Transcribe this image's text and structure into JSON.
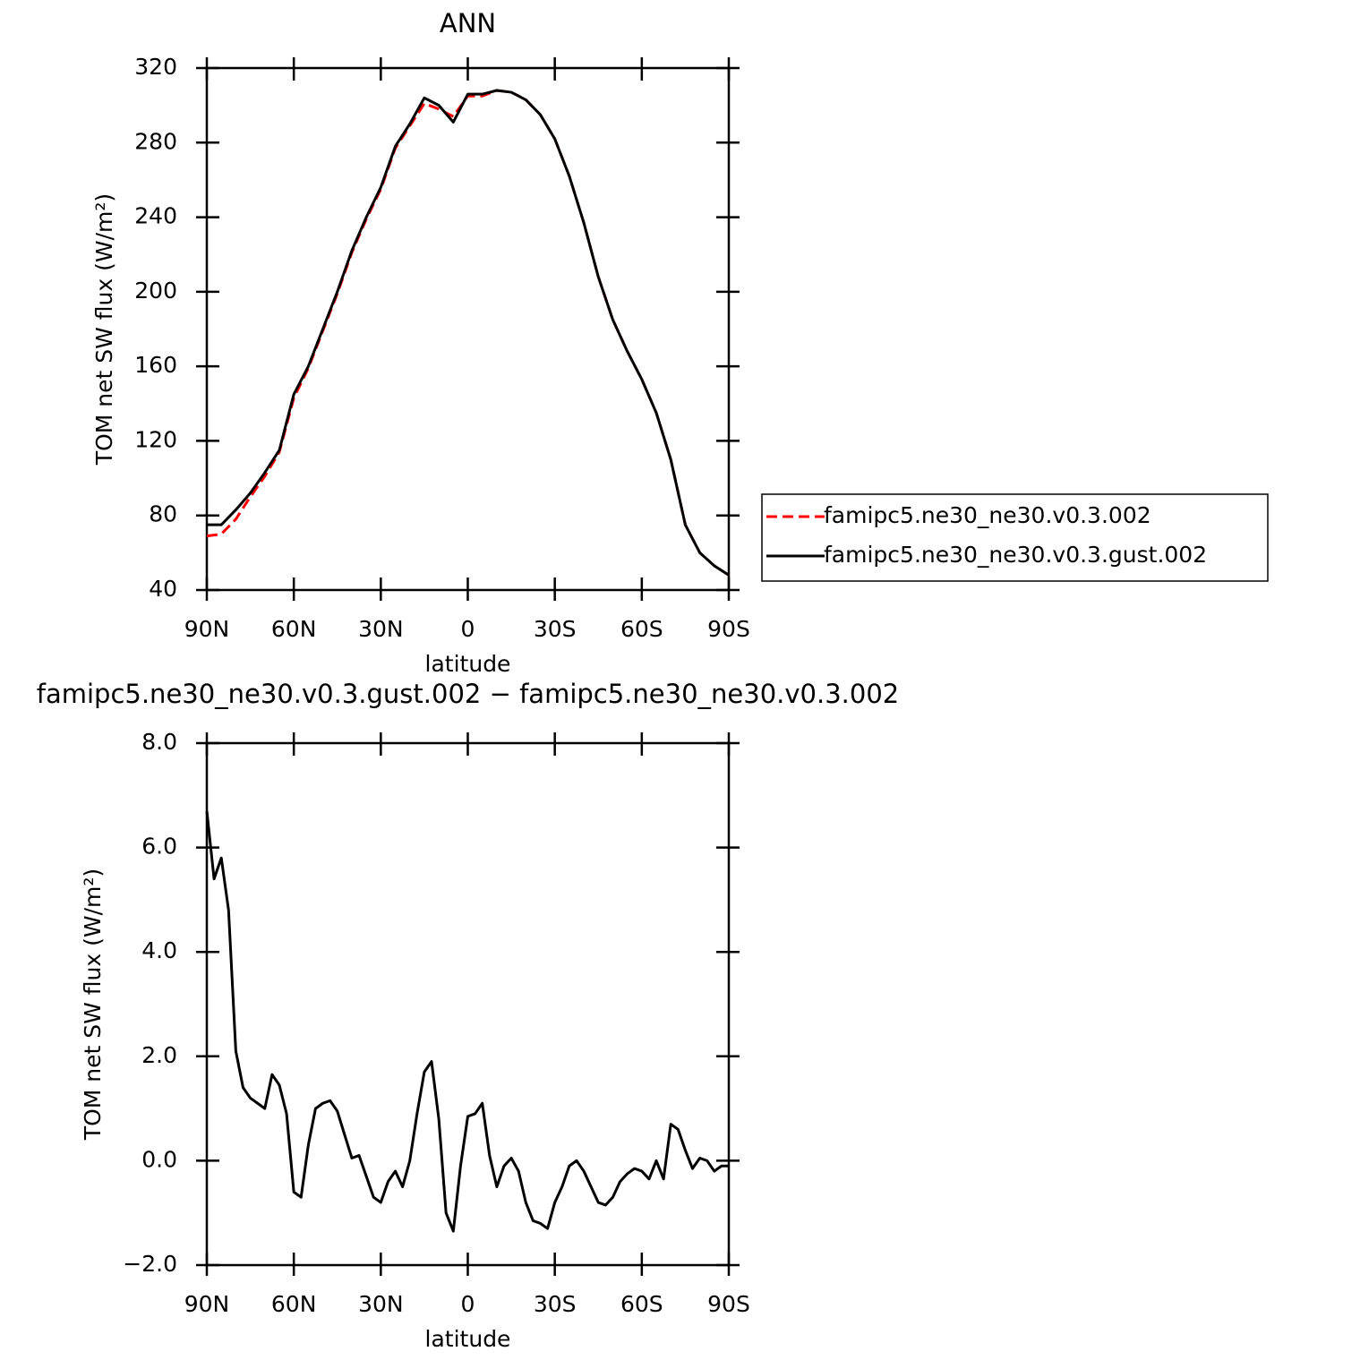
{
  "chart_data": [
    {
      "type": "line",
      "title": "ANN",
      "ylabel": "TOM net SW flux (W/m²)",
      "xlabel": "latitude",
      "x": [
        90,
        85,
        80,
        75,
        70,
        65,
        60,
        55,
        50,
        45,
        40,
        35,
        30,
        25,
        20,
        15,
        10,
        5,
        0,
        -5,
        -10,
        -15,
        -20,
        -25,
        -30,
        -35,
        -40,
        -45,
        -50,
        -55,
        -60,
        -65,
        -70,
        -75,
        -80,
        -85,
        -90
      ],
      "series": [
        {
          "name": "famipc5.ne30_ne30.v0.3.002",
          "color": "#ff0000",
          "linestyle": "dashed",
          "values": [
            69,
            70,
            78,
            90,
            101,
            114,
            143,
            159,
            179,
            199,
            221,
            239,
            255,
            277,
            289,
            301,
            298,
            294,
            305,
            305,
            308,
            307,
            303,
            295,
            282,
            262,
            237,
            208,
            185,
            168,
            153,
            135,
            110,
            75,
            60,
            53,
            48
          ]
        },
        {
          "name": "famipc5.ne30_ne30.v0.3.gust.002",
          "color": "#000000",
          "linestyle": "solid",
          "values": [
            75,
            75,
            83,
            92,
            103,
            115,
            145,
            160,
            180,
            200,
            222,
            240,
            256,
            278,
            290,
            304,
            300,
            291,
            306,
            306,
            308,
            307,
            303,
            295,
            282,
            262,
            237,
            208,
            185,
            168,
            153,
            135,
            110,
            75,
            60,
            53,
            48
          ]
        }
      ],
      "xlim": [
        90,
        -90
      ],
      "xticks": [
        {
          "value": 90,
          "label": "90N"
        },
        {
          "value": 60,
          "label": "60N"
        },
        {
          "value": 30,
          "label": "30N"
        },
        0,
        {
          "value": -30,
          "label": "30S"
        },
        {
          "value": -60,
          "label": "60S"
        },
        {
          "value": -90,
          "label": "90S"
        }
      ],
      "ylim": [
        40,
        320
      ],
      "yticks": [
        40,
        80,
        120,
        160,
        200,
        240,
        280,
        320
      ],
      "legend": "right"
    },
    {
      "type": "line",
      "title": "famipc5.ne30_ne30.v0.3.gust.002 − famipc5.ne30_ne30.v0.3.002",
      "ylabel": "TOM net SW flux (W/m²)",
      "xlabel": "latitude",
      "x": [
        90,
        87.5,
        85,
        82.5,
        80,
        77.5,
        75,
        72.5,
        70,
        67.5,
        65,
        62.5,
        60,
        57.5,
        55,
        52.5,
        50,
        47.5,
        45,
        42.5,
        40,
        37.5,
        35,
        32.5,
        30,
        27.5,
        25,
        22.5,
        20,
        17.5,
        15,
        12.5,
        10,
        7.5,
        5,
        2.5,
        0,
        -2.5,
        -5,
        -7.5,
        -10,
        -12.5,
        -15,
        -17.5,
        -20,
        -22.5,
        -25,
        -27.5,
        -30,
        -32.5,
        -35,
        -37.5,
        -40,
        -42.5,
        -45,
        -47.5,
        -50,
        -52.5,
        -55,
        -57.5,
        -60,
        -62.5,
        -65,
        -67.5,
        -70,
        -72.5,
        -75,
        -77.5,
        -80,
        -82.5,
        -85,
        -87.5,
        -90
      ],
      "series": [
        {
          "color": "#000000",
          "linestyle": "solid",
          "values": [
            6.7,
            5.4,
            5.8,
            4.8,
            2.1,
            1.4,
            1.2,
            1.1,
            1.0,
            1.65,
            1.45,
            0.9,
            -0.6,
            -0.7,
            0.3,
            1.0,
            1.1,
            1.15,
            0.95,
            0.5,
            0.05,
            0.1,
            -0.3,
            -0.7,
            -0.8,
            -0.4,
            -0.2,
            -0.5,
            0.0,
            0.9,
            1.7,
            1.9,
            0.8,
            -1.0,
            -1.35,
            -0.1,
            0.85,
            0.9,
            1.1,
            0.1,
            -0.5,
            -0.1,
            0.05,
            -0.2,
            -0.8,
            -1.15,
            -1.2,
            -1.3,
            -0.8,
            -0.5,
            -0.1,
            0.0,
            -0.2,
            -0.5,
            -0.8,
            -0.85,
            -0.7,
            -0.4,
            -0.25,
            -0.15,
            -0.2,
            -0.35,
            0.0,
            -0.35,
            0.7,
            0.6,
            0.2,
            -0.15,
            0.05,
            0.0,
            -0.2,
            -0.1,
            -0.1
          ]
        }
      ],
      "xlim": [
        90,
        -90
      ],
      "xticks": [
        {
          "value": 90,
          "label": "90N"
        },
        {
          "value": 60,
          "label": "60N"
        },
        {
          "value": 30,
          "label": "30N"
        },
        0,
        {
          "value": -30,
          "label": "30S"
        },
        {
          "value": -60,
          "label": "60S"
        },
        {
          "value": -90,
          "label": "90S"
        }
      ],
      "ylim": [
        -2,
        8
      ],
      "yticks": [
        {
          "value": -2,
          "label": "−2.0"
        },
        {
          "value": 0,
          "label": "0.0"
        },
        {
          "value": 2,
          "label": "2.0"
        },
        {
          "value": 4,
          "label": "4.0"
        },
        {
          "value": 6,
          "label": "6.0"
        },
        {
          "value": 8,
          "label": "8.0"
        }
      ]
    }
  ]
}
